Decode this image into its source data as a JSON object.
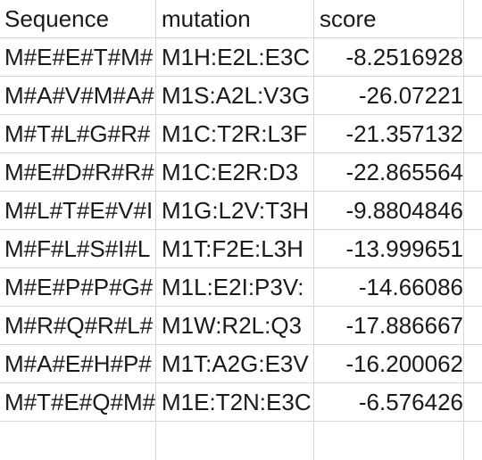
{
  "headers": {
    "sequence": "Sequence",
    "mutation": "mutation",
    "score": "score"
  },
  "rows": [
    {
      "sequence": "M#E#E#T#M#",
      "mutation": "M1H:E2L:E3C",
      "score": "-8.2516928"
    },
    {
      "sequence": "M#A#V#M#A#",
      "mutation": "M1S:A2L:V3G",
      "score": "-26.07221"
    },
    {
      "sequence": "M#T#L#G#R#",
      "mutation": "M1C:T2R:L3F",
      "score": "-21.357132"
    },
    {
      "sequence": "M#E#D#R#R#",
      "mutation": "M1C:E2R:D3",
      "score": "-22.865564"
    },
    {
      "sequence": "M#L#T#E#V#I",
      "mutation": "M1G:L2V:T3H",
      "score": "-9.8804846"
    },
    {
      "sequence": "M#F#L#S#I#L",
      "mutation": "M1T:F2E:L3H",
      "score": "-13.999651"
    },
    {
      "sequence": "M#E#P#P#G#",
      "mutation": "M1L:E2I:P3V:",
      "score": "-14.66086"
    },
    {
      "sequence": "M#R#Q#R#L#",
      "mutation": "M1W:R2L:Q3",
      "score": "-17.886667"
    },
    {
      "sequence": "M#A#E#H#P#",
      "mutation": "M1T:A2G:E3V",
      "score": "-16.200062"
    },
    {
      "sequence": "M#T#E#Q#M#",
      "mutation": "M1E:T2N:E3C",
      "score": "-6.576426"
    }
  ]
}
